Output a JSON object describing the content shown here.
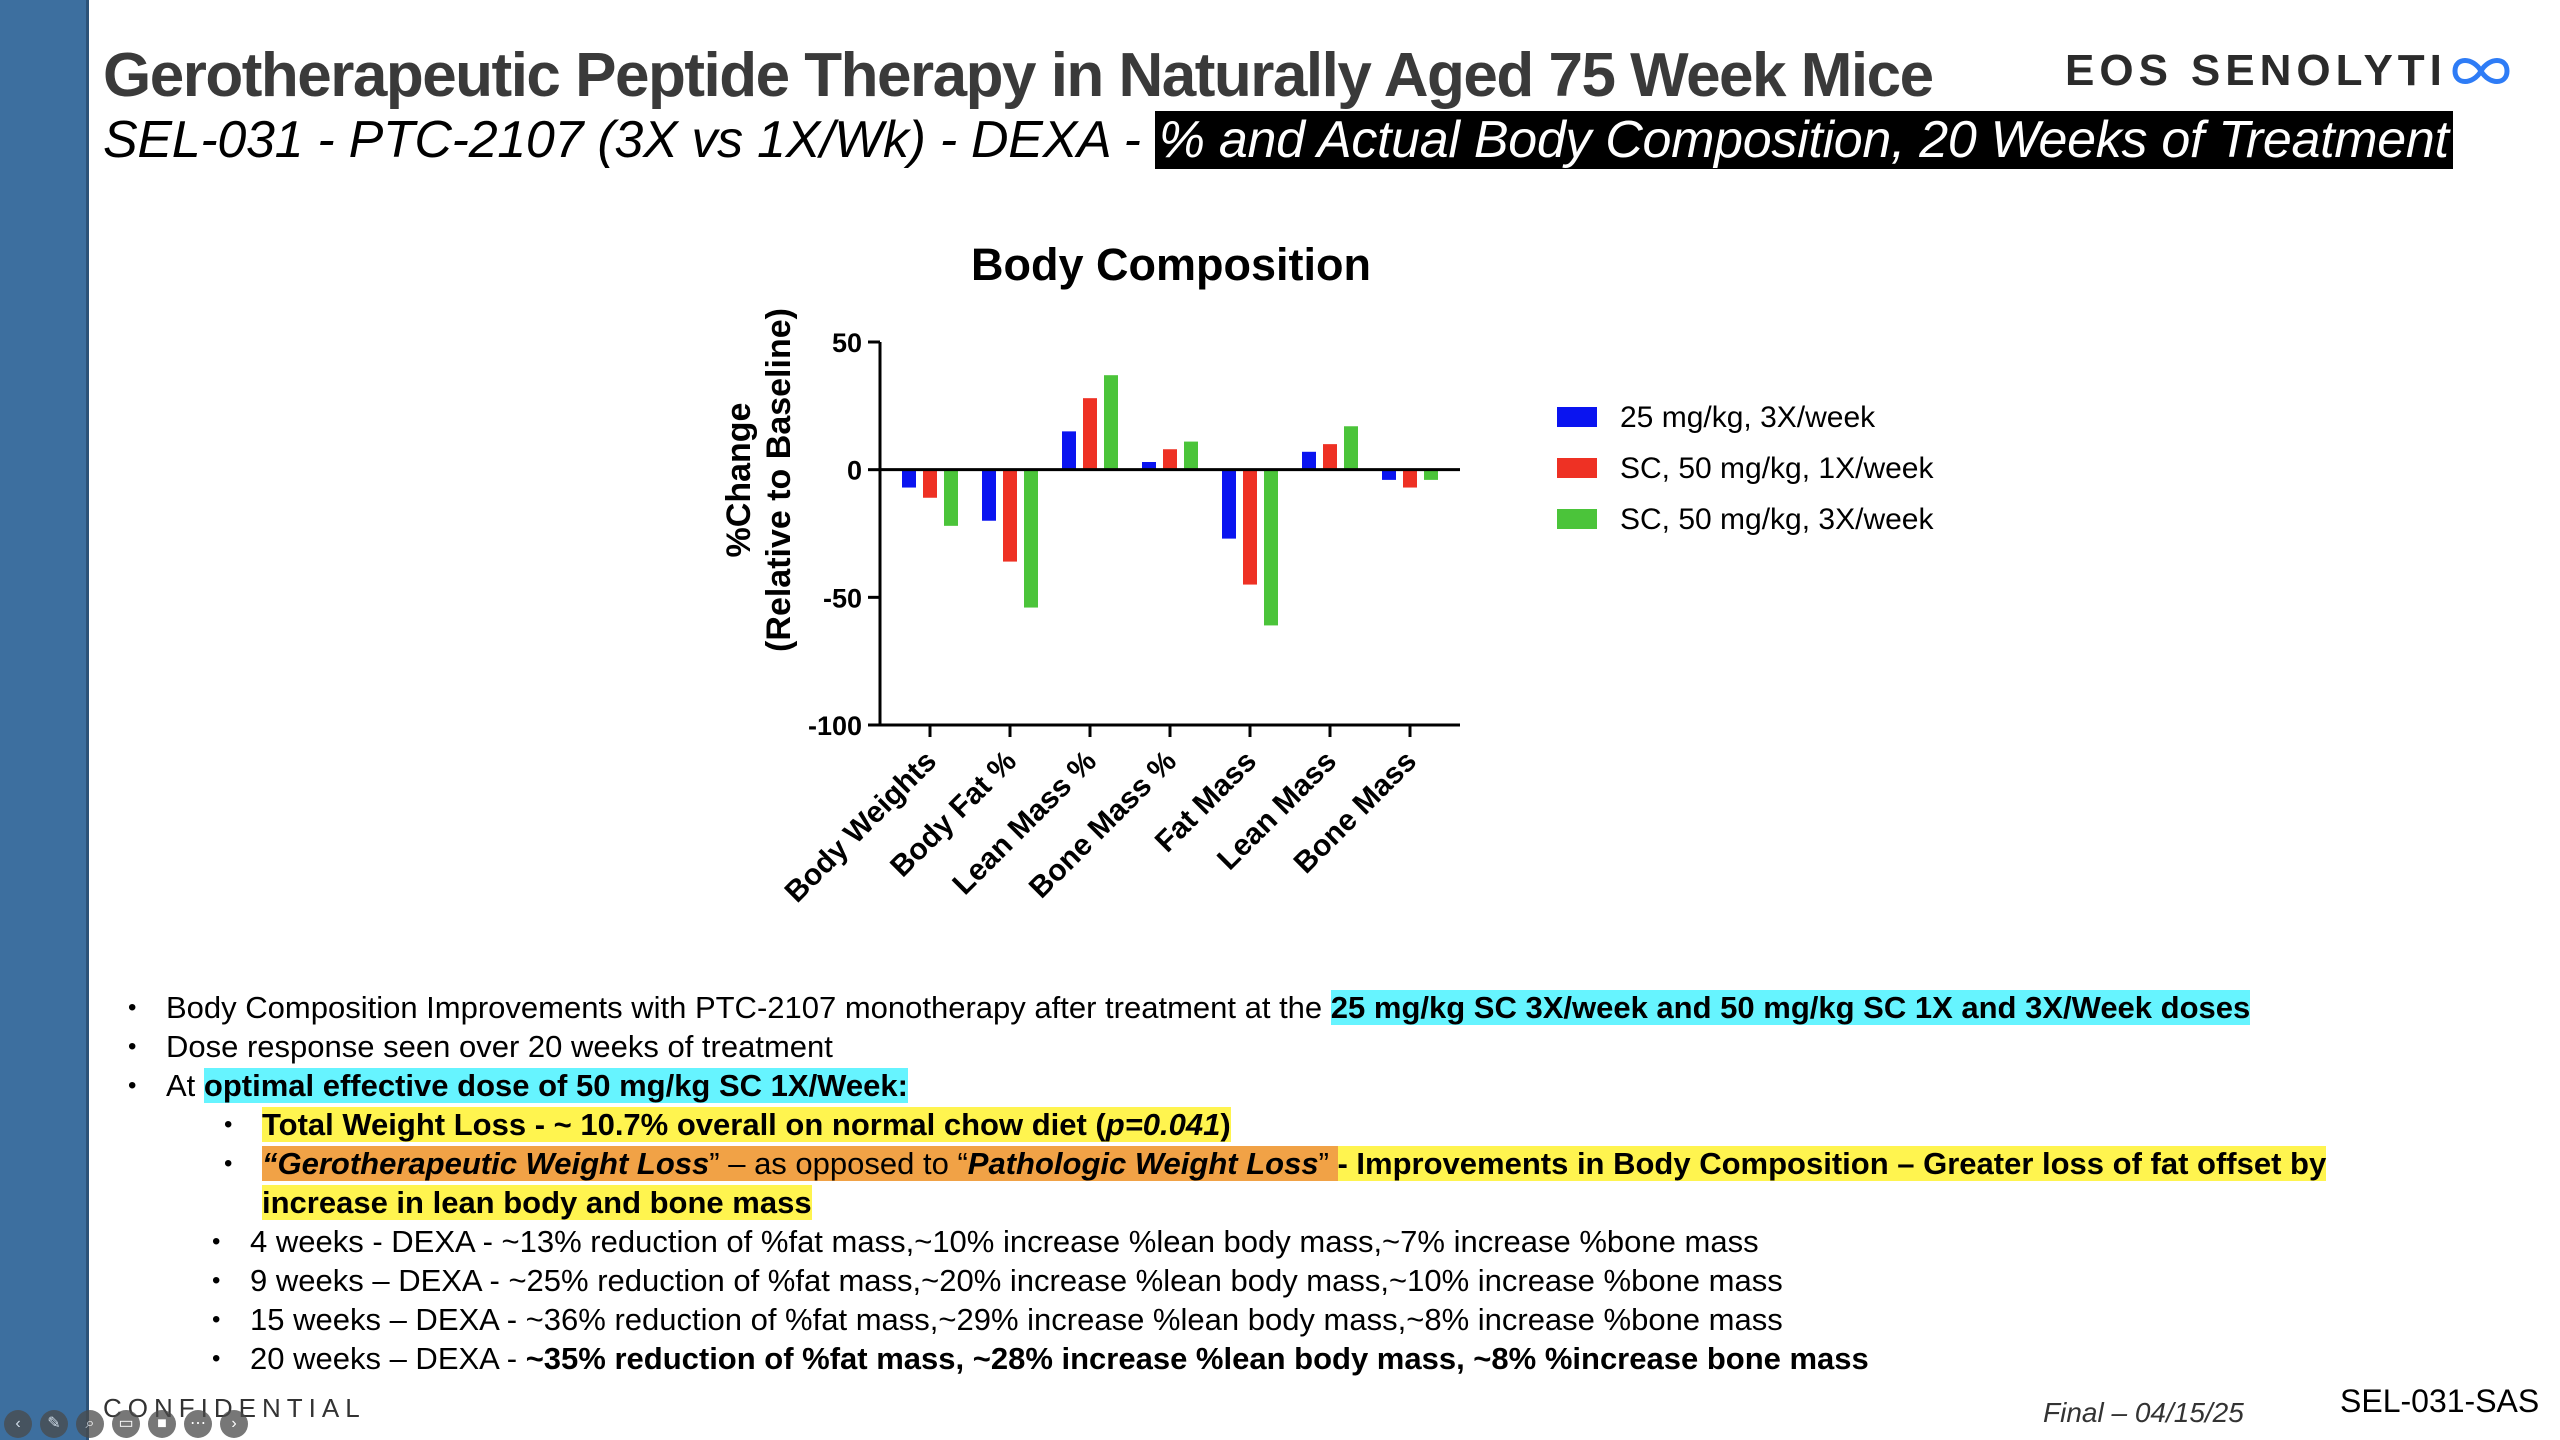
{
  "slide": {
    "title": "Gerotherapeutic Peptide Therapy in Naturally Aged 75 Week Mice",
    "subtitle_plain": "SEL-031 - PTC-2107 (3X vs 1X/Wk) - DEXA - ",
    "subtitle_highlight": "% and Actual Body Composition, 20 Weeks of Treatment",
    "logo_eos": "EOS",
    "logo_brand": "SENOLYTI"
  },
  "chart_data": {
    "type": "bar",
    "title": "Body Composition",
    "ylabel_line1": "%Change",
    "ylabel_line2": "(Relative to Baseline)",
    "xlabel": "",
    "ylim": [
      -100,
      50
    ],
    "yticks": [
      50,
      0,
      -50,
      -100
    ],
    "ytick_labels": [
      "50",
      "0",
      "-50",
      "-100"
    ],
    "categories": [
      "Body Weights",
      "Body Fat %",
      "Lean Mass %",
      "Bone Mass %",
      "Fat Mass",
      "Lean Mass",
      "Bone Mass"
    ],
    "series": [
      {
        "name": "25 mg/kg, 3X/week",
        "color": "#0a14f0",
        "values": [
          -7,
          -20,
          15,
          3,
          -27,
          7,
          -4
        ]
      },
      {
        "name": "SC, 50 mg/kg, 1X/week",
        "color": "#ee3124",
        "values": [
          -11,
          -36,
          28,
          8,
          -45,
          10,
          -7
        ]
      },
      {
        "name": "SC, 50 mg/kg, 3X/week",
        "color": "#4bc43a",
        "values": [
          -22,
          -54,
          37,
          11,
          -61,
          17,
          -4
        ]
      }
    ],
    "legend_position": "right",
    "grid": false
  },
  "bullets": {
    "b1_pre": "Body Composition Improvements with PTC-2107 monotherapy after treatment at the ",
    "b1_hl": "25 mg/kg SC 3X/week and 50 mg/kg SC 1X and 3X/Week doses",
    "b2": "Dose response seen over 20 weeks of treatment",
    "b3_pre": "At ",
    "b3_hl": "optimal effective dose of 50 mg/kg SC 1X/Week:",
    "s1_pre": "Total Weight Loss - ~ 10.7% overall on normal chow diet (",
    "s1_p": "p=0.041",
    "s1_post": ")",
    "s2_q1": "“Gerotherapeutic Weight Loss",
    "s2_mid1": "” – as opposed to “",
    "s2_q2": "Pathologic Weight Loss",
    "s2_mid2": "” ",
    "s2_dash": "- Improvements in Body Composition – Greater loss of fat offset by",
    "s2_cont": "increase in lean body and bone mass",
    "w4": "4 weeks - DEXA - ~13% reduction of %fat mass,~10% increase %lean body mass,~7% increase %bone mass",
    "w9": "9 weeks – DEXA - ~25% reduction of %fat mass,~20% increase %lean body mass,~10% increase %bone mass",
    "w15": "15 weeks – DEXA - ~36% reduction of %fat mass,~29% increase %lean body mass,~8% increase %bone mass",
    "w20_pre": "20 weeks – DEXA - ",
    "w20_bold": "~35% reduction of %fat mass, ~28% increase %lean body mass, ~8% %increase bone mass"
  },
  "footer": {
    "confidential": "CONFIDENTIAL",
    "final": "Final – 04/15/25",
    "id": "SEL-031-SAS"
  },
  "toolbar": {
    "icons": [
      "back-icon",
      "pen-icon",
      "zoom-icon",
      "captions-icon",
      "camera-icon",
      "more-icon",
      "forward-icon"
    ]
  }
}
